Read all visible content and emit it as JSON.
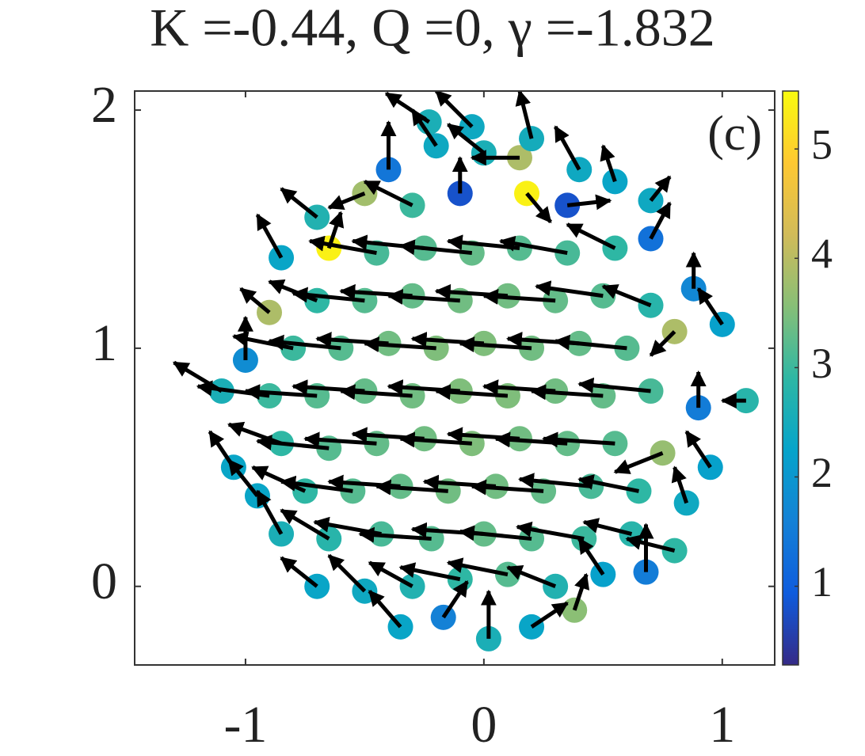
{
  "chart_data": {
    "type": "quiver",
    "title": "K =-0.44, Q =0, γ =-1.832",
    "panel_label": "(c)",
    "x": [
      -0.35,
      -0.17,
      0.02,
      0.2,
      0.38,
      -0.7,
      -0.5,
      -0.3,
      -0.1,
      0.1,
      0.3,
      0.5,
      0.68,
      -0.85,
      -0.65,
      -0.43,
      -0.22,
      0,
      0.2,
      0.42,
      0.62,
      0.8,
      -0.95,
      -0.75,
      -0.55,
      -0.35,
      -0.15,
      0.05,
      0.25,
      0.45,
      0.65,
      0.85,
      -1.05,
      -0.85,
      -0.65,
      -0.45,
      -0.25,
      -0.05,
      0.15,
      0.35,
      0.55,
      0.75,
      0.95,
      -1.1,
      -0.9,
      -0.7,
      -0.5,
      -0.3,
      -0.1,
      0.1,
      0.3,
      0.5,
      0.7,
      0.9,
      1.1,
      -1.0,
      -0.8,
      -0.6,
      -0.4,
      -0.2,
      0,
      0.2,
      0.4,
      0.6,
      0.8,
      1.0,
      -0.9,
      -0.7,
      -0.5,
      -0.3,
      -0.1,
      0.1,
      0.3,
      0.5,
      0.7,
      0.88,
      -0.85,
      -0.65,
      -0.45,
      -0.25,
      -0.05,
      0.15,
      0.35,
      0.55,
      0.7,
      -0.7,
      -0.5,
      -0.3,
      -0.1,
      0.18,
      0.35,
      0.55,
      0.7,
      -0.4,
      -0.2,
      0,
      0.15,
      0.4,
      -0.23,
      -0.05,
      0.2
    ],
    "y": [
      -0.17,
      -0.13,
      -0.22,
      -0.17,
      -0.1,
      0,
      -0.02,
      0,
      0.03,
      0.05,
      0,
      0.05,
      0.06,
      0.22,
      0.2,
      0.22,
      0.2,
      0.22,
      0.2,
      0.2,
      0.22,
      0.15,
      0.38,
      0.4,
      0.4,
      0.42,
      0.4,
      0.42,
      0.4,
      0.42,
      0.4,
      0.35,
      0.5,
      0.6,
      0.58,
      0.6,
      0.62,
      0.6,
      0.62,
      0.6,
      0.6,
      0.56,
      0.5,
      0.82,
      0.8,
      0.8,
      0.82,
      0.8,
      0.82,
      0.8,
      0.82,
      0.8,
      0.82,
      0.75,
      0.78,
      0.95,
      1.0,
      1.0,
      1.02,
      1.0,
      1.02,
      1.0,
      1.02,
      1.0,
      1.07,
      1.1,
      1.15,
      1.2,
      1.2,
      1.22,
      1.2,
      1.22,
      1.2,
      1.22,
      1.18,
      1.25,
      1.38,
      1.42,
      1.4,
      1.42,
      1.4,
      1.42,
      1.4,
      1.42,
      1.46,
      1.55,
      1.65,
      1.6,
      1.65,
      1.65,
      1.6,
      1.7,
      1.62,
      1.75,
      1.85,
      1.82,
      1.8,
      1.75,
      1.95,
      1.93,
      1.88
    ],
    "c": [
      2.3,
      1.6,
      2.6,
      2.3,
      3.6,
      2.3,
      2.4,
      2.7,
      2.9,
      3.2,
      2.7,
      2.2,
      1.5,
      2.6,
      2.8,
      3.1,
      3.2,
      3.3,
      3.2,
      3.0,
      2.8,
      2.9,
      2.3,
      2.9,
      3.2,
      3.3,
      3.4,
      3.4,
      3.3,
      3.1,
      2.9,
      2.4,
      2.3,
      2.9,
      3.2,
      3.3,
      3.4,
      3.5,
      3.4,
      3.3,
      3.2,
      3.7,
      2.2,
      2.6,
      3.0,
      3.2,
      3.3,
      3.4,
      3.5,
      3.5,
      3.4,
      3.3,
      3.1,
      1.5,
      2.8,
      1.8,
      3.0,
      3.2,
      3.4,
      3.5,
      3.5,
      3.4,
      3.3,
      3.2,
      3.9,
      2.2,
      3.9,
      2.9,
      3.2,
      3.3,
      3.4,
      3.4,
      3.3,
      3.2,
      2.8,
      1.7,
      2.3,
      5.4,
      3.1,
      3.2,
      3.3,
      3.2,
      3.1,
      2.9,
      1.3,
      2.7,
      3.8,
      3.0,
      0.8,
      5.4,
      0.8,
      2.3,
      2.4,
      1.4,
      2.4,
      2.6,
      3.9,
      2.4,
      2.6,
      2.4,
      2.5
    ],
    "u": [
      -0.13,
      0.1,
      0,
      0.15,
      0.05,
      -0.15,
      -0.15,
      -0.18,
      -0.25,
      -0.25,
      -0.2,
      -0.1,
      0,
      -0.1,
      -0.2,
      -0.28,
      -0.3,
      -0.3,
      -0.3,
      -0.28,
      -0.2,
      -0.2,
      -0.12,
      -0.22,
      -0.3,
      -0.3,
      -0.3,
      -0.3,
      -0.3,
      -0.3,
      -0.25,
      -0.05,
      -0.1,
      -0.22,
      -0.3,
      -0.3,
      -0.3,
      -0.3,
      -0.3,
      -0.3,
      -0.3,
      -0.2,
      -0.1,
      -0.2,
      -0.3,
      -0.3,
      -0.3,
      -0.3,
      -0.3,
      -0.3,
      -0.3,
      -0.3,
      -0.3,
      0,
      -0.1,
      0,
      -0.25,
      -0.3,
      -0.3,
      -0.3,
      -0.3,
      -0.3,
      -0.3,
      -0.3,
      -0.1,
      -0.1,
      -0.12,
      -0.2,
      -0.3,
      -0.3,
      -0.3,
      -0.3,
      -0.3,
      -0.28,
      -0.2,
      0,
      -0.1,
      0.05,
      -0.28,
      -0.3,
      -0.3,
      -0.3,
      -0.28,
      -0.2,
      0.08,
      -0.15,
      -0.15,
      -0.2,
      0,
      0.1,
      0.18,
      -0.05,
      0.08,
      0,
      -0.1,
      -0.15,
      -0.2,
      -0.1,
      -0.18,
      -0.15,
      -0.05
    ],
    "v": [
      0.15,
      0.15,
      0.2,
      0.1,
      0.15,
      0.12,
      0.15,
      0.1,
      0.05,
      0.05,
      0.08,
      0.15,
      0.2,
      0.18,
      0.12,
      0.05,
      0.02,
      0.02,
      0.03,
      0.05,
      0.05,
      0.05,
      0.15,
      0.1,
      0.04,
      0.02,
      0.02,
      0.02,
      0.02,
      0.03,
      0.05,
      0.15,
      0.15,
      0.08,
      0.03,
      0.02,
      0.02,
      0.02,
      0.02,
      0.02,
      0.02,
      -0.08,
      0.15,
      0.12,
      0.04,
      0.02,
      0.02,
      0.02,
      0.02,
      0.02,
      0.02,
      0.02,
      0.03,
      0.15,
      0,
      0.18,
      0.05,
      0.03,
      0.02,
      0.02,
      0.02,
      0.02,
      0.02,
      0.03,
      -0.1,
      0.15,
      0.1,
      0.08,
      0.03,
      0.02,
      0.02,
      0.02,
      0.02,
      0.04,
      0.08,
      0.15,
      0.18,
      0.15,
      0.05,
      0.03,
      0.03,
      0.03,
      0.05,
      0.1,
      0.15,
      0.12,
      -0.06,
      0.1,
      0.15,
      -0.12,
      0.02,
      0.15,
      0.1,
      0.2,
      0.15,
      0.12,
      0,
      0.18,
      0.12,
      0.15,
      0.2
    ],
    "xlim": [
      -1.465,
      1.22
    ],
    "ylim": [
      -0.33,
      2.08
    ],
    "xticks": [
      -1,
      0,
      1
    ],
    "yticks": [
      0,
      1,
      2
    ],
    "colorbar": {
      "clim": [
        0.28,
        5.53
      ],
      "ticks": [
        1,
        2,
        3,
        4,
        5
      ],
      "colormap": [
        "#352a87",
        "#0f5cdd",
        "#1481d6",
        "#06a4ca",
        "#2eb7a4",
        "#87bf77",
        "#d1bb59",
        "#fec832",
        "#f9fb0e"
      ]
    }
  }
}
